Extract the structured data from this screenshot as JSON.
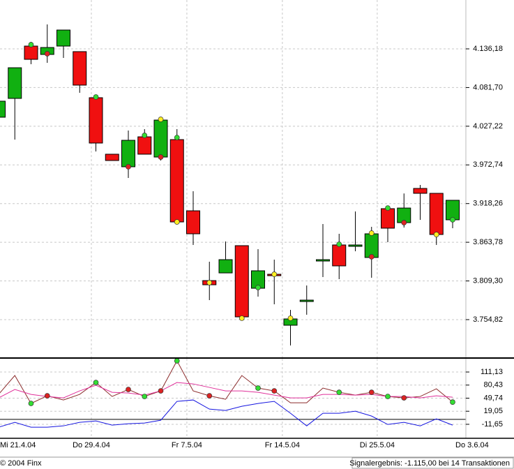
{
  "chart_data": [
    {
      "type": "candlestick",
      "open": [
        4039.9,
        4066.4,
        4140.1,
        4128.3,
        4140.1,
        4132.3,
        4067.4,
        3987.8,
        3970.1,
        4012.3,
        3983.8,
        4008.4,
        3908.1,
        3809.8,
        3820.6,
        3859.0,
        3799.0,
        3818.7,
        3746.9,
        3780.3,
        3837.4,
        3860.0,
        3858.0,
        3842.3,
        3911.1,
        3891.4,
        3939.6,
        3932.7,
        3895.4
      ],
      "high": [
        4067.4,
        4109.6,
        4146.0,
        4170.6,
        4162.7,
        4132.3,
        4070.3,
        3987.8,
        4021.2,
        4023.1,
        4035.9,
        4023.1,
        3935.6,
        3836.4,
        3864.9,
        3859.0,
        3854.1,
        3839.3,
        3768.5,
        3802.9,
        3889.5,
        3875.7,
        3907.1,
        3885.5,
        3911.1,
        3932.5,
        3944.5,
        3932.7,
        3922.9
      ],
      "low": [
        4037.9,
        4008.4,
        4114.6,
        4116.5,
        4123.4,
        4074.3,
        3991.7,
        3978.9,
        3954.3,
        3987.8,
        3978.9,
        3892.4,
        3860.0,
        3782.3,
        3820.6,
        3758.7,
        3787.2,
        3776.4,
        3718.4,
        3761.7,
        3814.8,
        3811.8,
        3851.1,
        3813.8,
        3863.9,
        3884.5,
        3895.4,
        3860.0,
        3883.6
      ],
      "close": [
        4062.5,
        4109.6,
        4121.4,
        4138.1,
        4162.7,
        4085.1,
        4003.5,
        3978.9,
        4007.4,
        3987.8,
        4035.9,
        3892.4,
        3875.7,
        3803.9,
        3839.3,
        3758.7,
        3823.6,
        3816.7,
        3755.8,
        3782.3,
        3839.3,
        3830.5,
        3860.0,
        3875.7,
        3883.6,
        3912.0,
        3932.7,
        3874.7,
        3922.9
      ],
      "up_color": "#11b011",
      "down_color": "#f01010",
      "signals": {
        "index": [
          2,
          3,
          6,
          8,
          9,
          10,
          10,
          11,
          11,
          13,
          15,
          16,
          17,
          18,
          21,
          23,
          23,
          24,
          25,
          27,
          28
        ],
        "values": [
          4142.1,
          4129.3,
          4068.4,
          3970.1,
          4014.3,
          4036.9,
          3983.8,
          4011.3,
          3892.4,
          3806.9,
          3756.8,
          3800.0,
          3818.7,
          3756.8,
          3861.0,
          3876.7,
          3843.3,
          3912.0,
          3891.4,
          3874.7,
          3895.4
        ],
        "colors": [
          "#33dd33",
          "#dd2222",
          "#33dd33",
          "#dd2222",
          "#33dd33",
          "#ffee22",
          "#dd2222",
          "#33dd33",
          "#ffee22",
          "#ffee22",
          "#ffee22",
          "#33dd33",
          "#ffee22",
          "#ffee22",
          "#33dd33",
          "#ffee22",
          "#dd2222",
          "#33dd33",
          "#dd2222",
          "#ffee22",
          "#33dd33"
        ]
      },
      "ylim": [
        3701.7,
        4205.0
      ],
      "yticks": [
        {
          "value": 3754.82,
          "label": "3.754,82"
        },
        {
          "value": 3809.3,
          "label": "3.809,30"
        },
        {
          "value": 3863.78,
          "label": "3.863,78"
        },
        {
          "value": 3918.26,
          "label": "3.918,26"
        },
        {
          "value": 3972.74,
          "label": "3.972,74"
        },
        {
          "value": 4027.22,
          "label": "4.027,22"
        },
        {
          "value": 4081.7,
          "label": "4.081,70"
        },
        {
          "value": 4136.18,
          "label": "4.136,18"
        }
      ],
      "xticks": [
        {
          "value": -0.17,
          "label": "Mi 21.4.04"
        },
        {
          "value": 5.72,
          "label": "Do 29.4.04"
        },
        {
          "value": 11.61,
          "label": "Fr 7.5.04"
        },
        {
          "value": 17.5,
          "label": "Fr 14.5.04"
        },
        {
          "value": 23.35,
          "label": "Di 25.5.04"
        },
        {
          "value": 29.2,
          "label": "Do 3.6.04"
        }
      ],
      "grid": true
    },
    {
      "type": "line",
      "series": [
        {
          "color": "#8b2b2b",
          "values": [
            58.6,
            102.9,
            37.3,
            55.3,
            45.5,
            58.6,
            86.5,
            53.7,
            70.1,
            53.7,
            66.8,
            137.4,
            66.8,
            55.3,
            47.1,
            102.9,
            73.4,
            66.8,
            38.9,
            38.9,
            73.4,
            63.5,
            56.9,
            63.5,
            53.7,
            50.4,
            53.7,
            71.7,
            40.5
          ]
        },
        {
          "color": "#e0309a",
          "values": [
            50.4,
            70.1,
            58.6,
            53.7,
            50.4,
            66.8,
            79.9,
            63.5,
            61.9,
            56.9,
            66.8,
            86.5,
            83.2,
            75.0,
            66.8,
            66.8,
            63.5,
            56.9,
            50.4,
            50.4,
            58.6,
            58.6,
            56.9,
            58.6,
            53.7,
            53.7,
            50.4,
            55.3,
            52.0
          ]
        },
        {
          "color": "#1515e0",
          "values": [
            -18.5,
            -7.1,
            -18.5,
            -18.5,
            -15.3,
            -7.1,
            -3.8,
            -13.6,
            -10.3,
            -8.7,
            -2.1,
            42.2,
            45.5,
            24.1,
            20.8,
            30.7,
            37.3,
            42.2,
            14.3,
            -15.3,
            14.3,
            14.3,
            19.2,
            7.7,
            -12.0,
            -7.1,
            -15.3,
            1.2,
            -13.6
          ]
        }
      ],
      "signals": {
        "index": [
          2,
          3,
          6,
          8,
          9,
          10,
          11,
          13,
          16,
          17,
          21,
          23,
          24,
          25,
          28
        ],
        "colors": [
          "#33dd33",
          "#dd2222",
          "#33dd33",
          "#dd2222",
          "#33dd33",
          "#dd2222",
          "#33dd33",
          "#dd2222",
          "#33dd33",
          "#dd2222",
          "#33dd33",
          "#dd2222",
          "#33dd33",
          "#dd2222",
          "#33dd33"
        ]
      },
      "hline": 0,
      "ylim": [
        -44.5,
        142.3
      ],
      "yticks": [
        {
          "value": -11.65,
          "label": "-11,65"
        },
        {
          "value": 19.05,
          "label": "19,05"
        },
        {
          "value": 49.74,
          "label": "49,74"
        },
        {
          "value": 80.43,
          "label": "80,43"
        },
        {
          "value": 111.13,
          "label": "111,13"
        }
      ],
      "grid": true
    }
  ],
  "footer": {
    "copyright": "© 2004 Finx",
    "result": "Signalergebnis: -1.115,00 bei 14 Transaktionen"
  }
}
